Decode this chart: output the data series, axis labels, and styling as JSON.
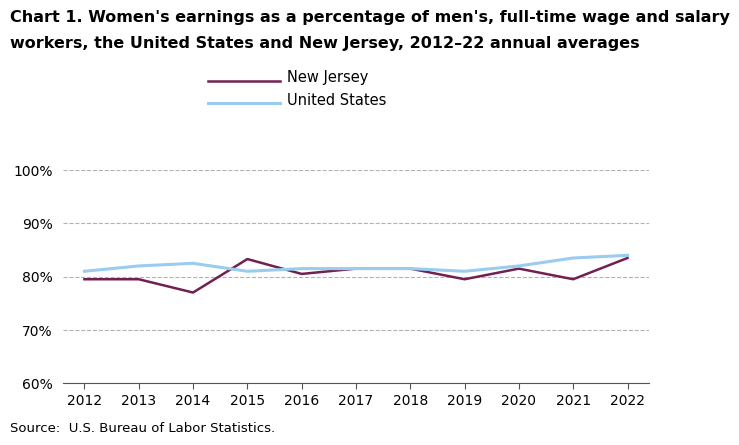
{
  "title_line1": "Chart 1. Women's earnings as a percentage of men's, full-time wage and salary",
  "title_line2": "workers, the United States and New Jersey, 2012–22 annual averages",
  "years": [
    2012,
    2013,
    2014,
    2015,
    2016,
    2017,
    2018,
    2019,
    2020,
    2021,
    2022
  ],
  "nj_values": [
    0.795,
    0.795,
    0.77,
    0.833,
    0.805,
    0.815,
    0.815,
    0.795,
    0.815,
    0.795,
    0.835
  ],
  "us_values": [
    0.81,
    0.82,
    0.825,
    0.81,
    0.815,
    0.815,
    0.815,
    0.81,
    0.82,
    0.835,
    0.84
  ],
  "nj_color": "#722050",
  "us_color": "#99CCEE",
  "ylim": [
    0.6,
    1.0
  ],
  "yticks": [
    0.6,
    0.7,
    0.8,
    0.9,
    1.0
  ],
  "source": "Source:  U.S. Bureau of Labor Statistics.",
  "legend_nj": "New Jersey",
  "legend_us": "United States",
  "title_fontsize": 11.5,
  "axis_fontsize": 10,
  "legend_fontsize": 10.5,
  "source_fontsize": 9.5
}
